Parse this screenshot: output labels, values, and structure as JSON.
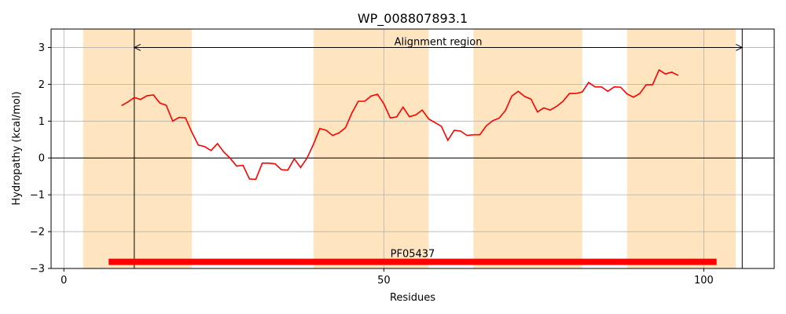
{
  "chart_data": {
    "type": "line",
    "title": "WP_008807893.1",
    "xlabel": "Residues",
    "ylabel": "Hydropathy (kcal/mol)",
    "xlim": [
      -2,
      111
    ],
    "ylim": [
      -3,
      3.5
    ],
    "xticks": [
      0,
      50,
      100
    ],
    "yticks": [
      -3,
      -2,
      -1,
      0,
      1,
      2,
      3
    ],
    "grid": true,
    "bands": [
      [
        3,
        20
      ],
      [
        39,
        57
      ],
      [
        64,
        81
      ],
      [
        88,
        105
      ]
    ],
    "band_color": "#ffe5bf",
    "alignment_region": {
      "label": "Alignment region",
      "start": 11,
      "end": 106,
      "y": 3
    },
    "domain": {
      "label": "PF05437",
      "start": 7,
      "end": 102,
      "y": -2.82,
      "color": "#ff0000"
    },
    "series": [
      {
        "color": "#ff0000",
        "x": [
          9,
          10,
          11,
          12,
          13,
          14,
          15,
          16,
          17,
          18,
          19,
          20,
          21,
          22,
          23,
          24,
          25,
          26,
          27,
          28,
          29,
          30,
          31,
          32,
          33,
          34,
          35,
          36,
          37,
          38,
          39,
          40,
          41,
          42,
          43,
          44,
          45,
          46,
          47,
          48,
          49,
          50,
          51,
          52,
          53,
          54,
          55,
          56,
          57,
          58,
          59,
          60,
          61,
          62,
          63,
          64,
          65,
          66,
          67,
          68,
          69,
          70,
          71,
          72,
          73,
          74,
          75,
          76,
          77,
          78,
          79,
          80,
          81,
          82,
          83,
          84,
          85,
          86,
          87,
          88,
          89,
          90,
          91,
          92,
          93,
          94,
          95,
          96
        ],
        "y": [
          1.42,
          1.52,
          1.64,
          1.59,
          1.69,
          1.71,
          1.49,
          1.43,
          1.0,
          1.1,
          1.09,
          0.7,
          0.35,
          0.31,
          0.2,
          0.39,
          0.16,
          -0.01,
          -0.22,
          -0.2,
          -0.57,
          -0.58,
          -0.14,
          -0.14,
          -0.16,
          -0.32,
          -0.33,
          -0.02,
          -0.26,
          0.0,
          0.37,
          0.8,
          0.75,
          0.61,
          0.68,
          0.82,
          1.22,
          1.54,
          1.54,
          1.68,
          1.73,
          1.47,
          1.09,
          1.11,
          1.38,
          1.12,
          1.17,
          1.3,
          1.06,
          0.96,
          0.86,
          0.48,
          0.75,
          0.73,
          0.61,
          0.63,
          0.63,
          0.87,
          1.01,
          1.08,
          1.29,
          1.68,
          1.81,
          1.67,
          1.6,
          1.25,
          1.36,
          1.3,
          1.4,
          1.54,
          1.75,
          1.75,
          1.79,
          2.05,
          1.93,
          1.93,
          1.81,
          1.93,
          1.92,
          1.74,
          1.65,
          1.75,
          1.99,
          1.99,
          2.39,
          2.28,
          2.33,
          2.24
        ]
      }
    ]
  }
}
